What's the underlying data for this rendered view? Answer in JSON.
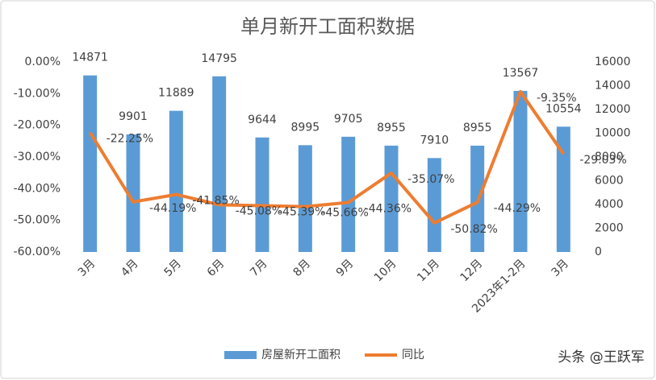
{
  "chart_data": {
    "type": "bar",
    "title": "单月新开工面积数据",
    "categories": [
      "3月",
      "4月",
      "5月",
      "6月",
      "7月",
      "8月",
      "9月",
      "10月",
      "11月",
      "12月",
      "2023年1-2月",
      "3月"
    ],
    "series": [
      {
        "name": "房屋新开工面积",
        "type": "bar",
        "axis": "y2",
        "color": "#5b9bd5",
        "values": [
          14871,
          9901,
          11889,
          14795,
          9644,
          8995,
          9705,
          8955,
          7910,
          8955,
          13567,
          10554
        ]
      },
      {
        "name": "同比",
        "type": "line",
        "color": "#ed7d31",
        "values": [
          -22.25,
          -44.19,
          -41.85,
          -45.08,
          -45.39,
          -45.66,
          -44.36,
          -35.07,
          -50.82,
          -44.29,
          -9.35,
          -29.03
        ],
        "value_labels": [
          "-22.25%",
          "-44.19%",
          "-41.85%",
          "-45.08%",
          "-45.39%",
          "-45.66%",
          "-44.36%",
          "-35.07%",
          "-50.82%",
          "-44.29%",
          "-9.35%",
          "-29.03%"
        ]
      }
    ],
    "ylim": [
      -60,
      0
    ],
    "yticks": [
      {
        "value": 0,
        "label": "0.00%"
      },
      {
        "value": -10,
        "label": "-10.00%"
      },
      {
        "value": -20,
        "label": "-20.00%"
      },
      {
        "value": -30,
        "label": "-30.00%"
      },
      {
        "value": -40,
        "label": "-40.00%"
      },
      {
        "value": -50,
        "label": "-50.00%"
      },
      {
        "value": -60,
        "label": "-60.00%"
      }
    ],
    "y2lim": [
      0,
      16000
    ],
    "y2ticks": [
      0,
      2000,
      4000,
      6000,
      8000,
      10000,
      12000,
      14000,
      16000
    ],
    "legend": "bottom",
    "annotations": [
      "头条 @王跃军"
    ]
  }
}
